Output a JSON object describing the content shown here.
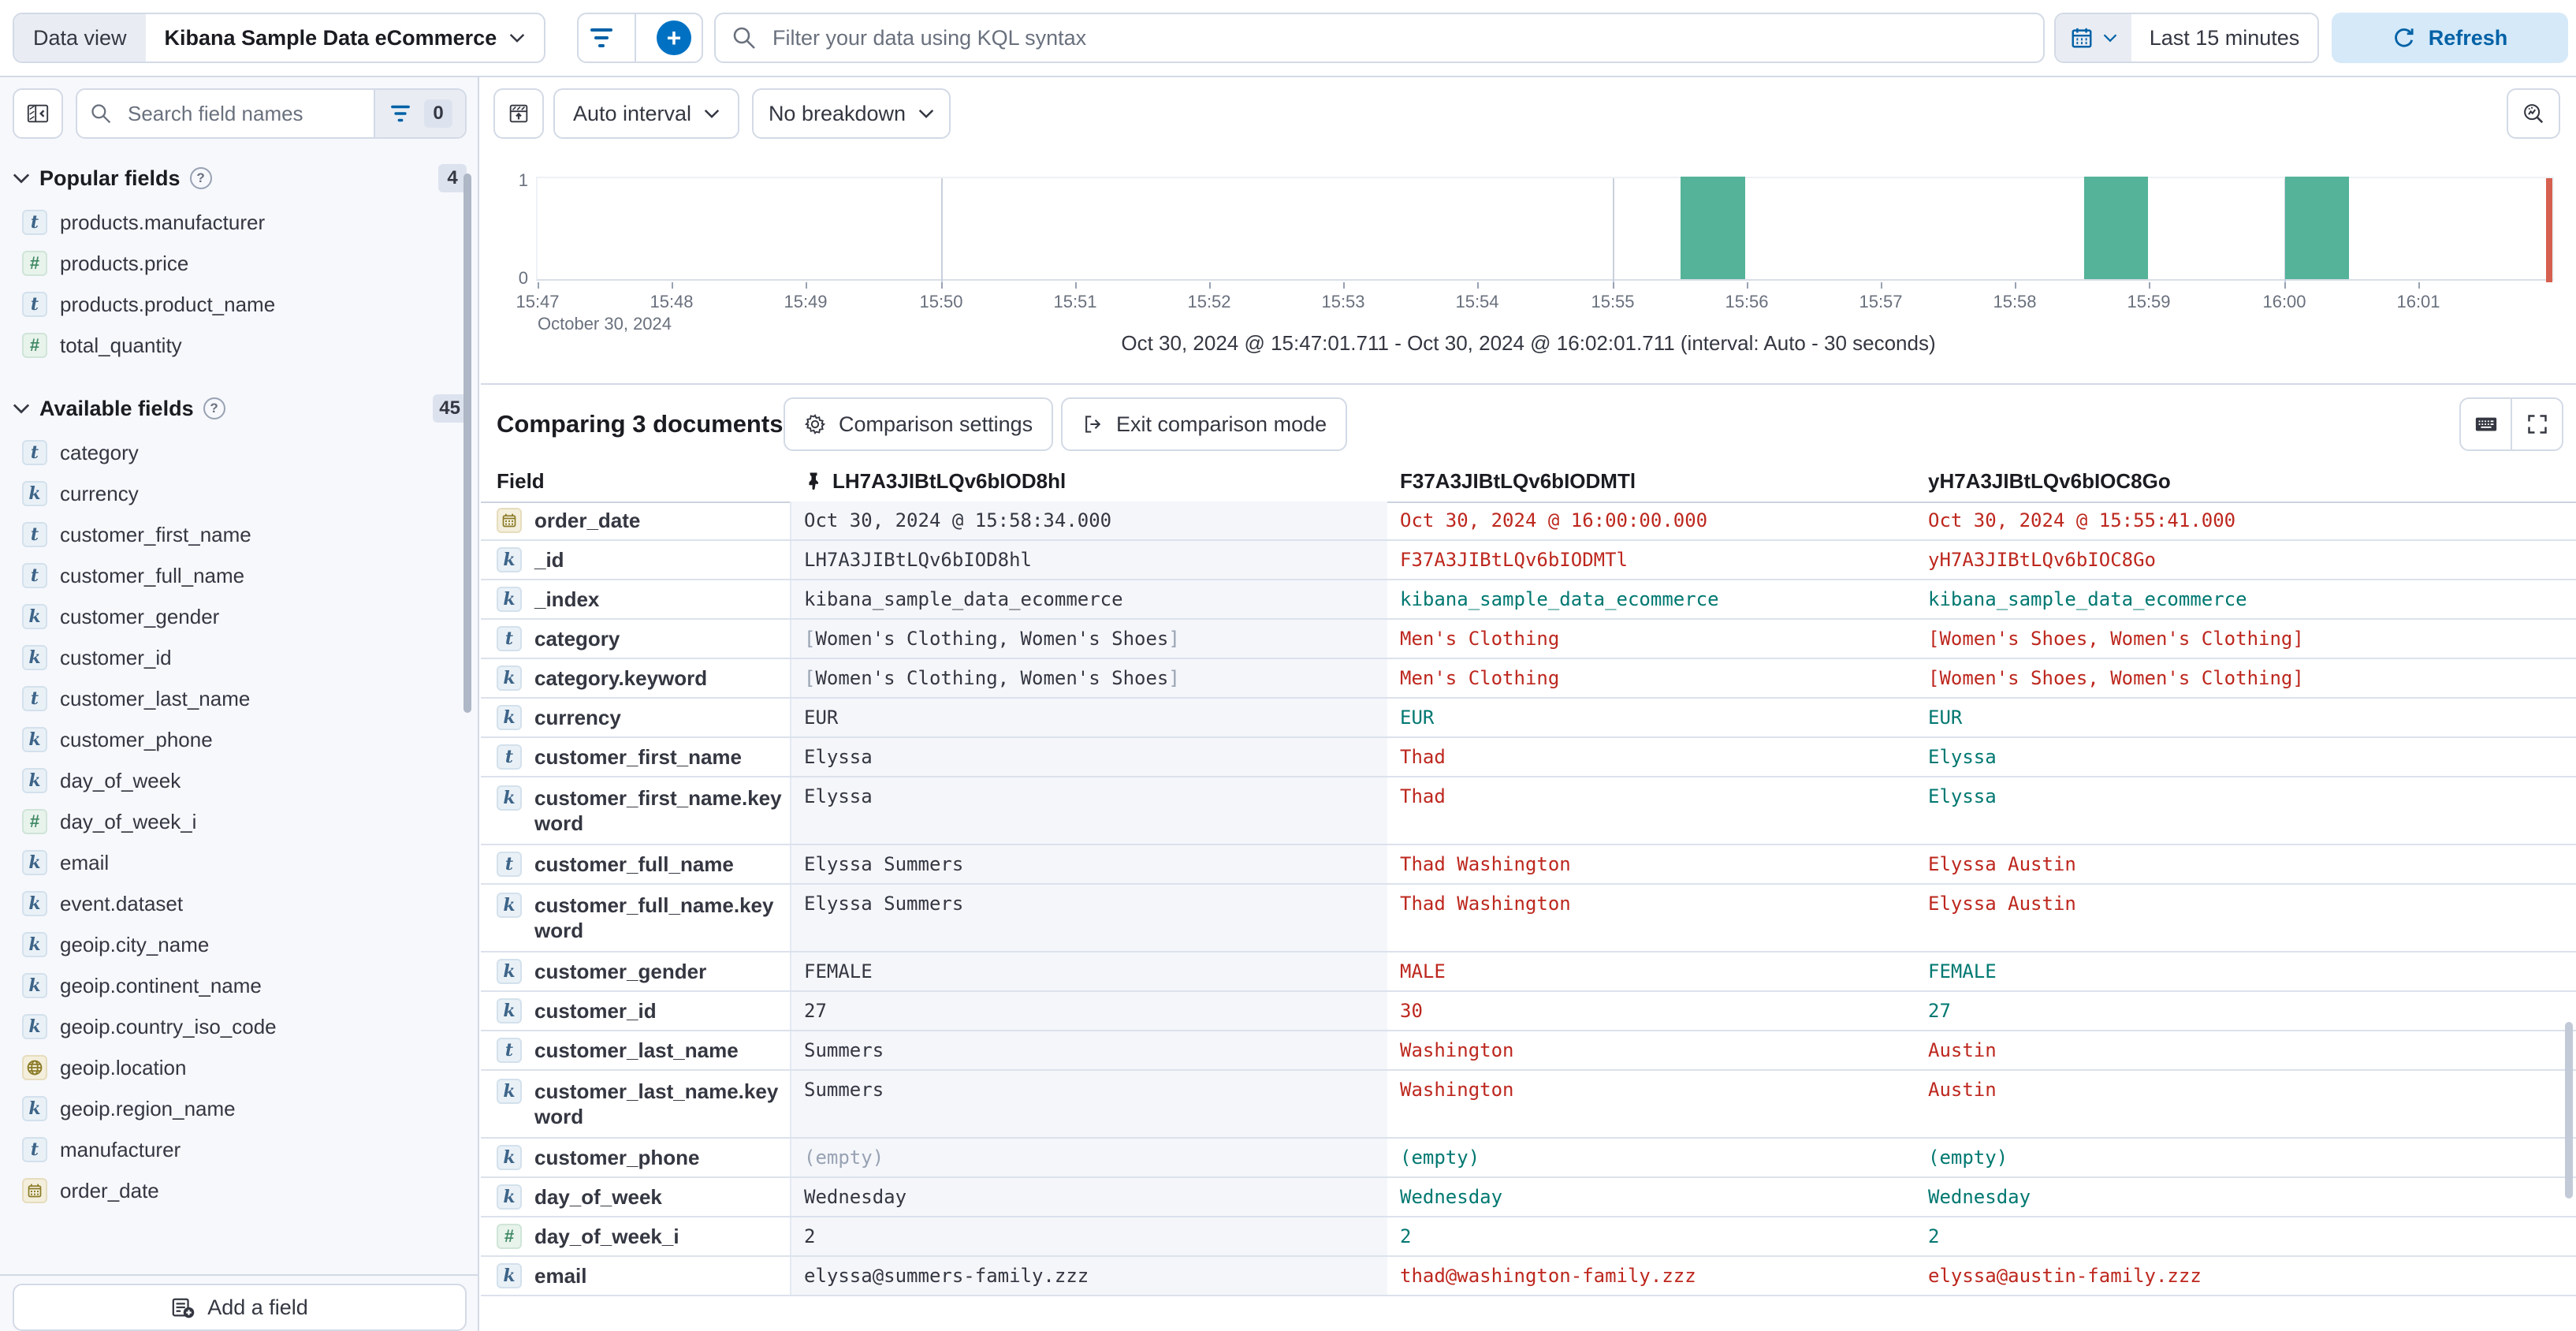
{
  "topbar": {
    "data_view_label": "Data view",
    "data_view_value": "Kibana Sample Data eCommerce",
    "search_placeholder": "Filter your data using KQL syntax",
    "time_range": "Last 15 minutes",
    "refresh_label": "Refresh"
  },
  "sidebar": {
    "search_placeholder": "Search field names",
    "filter_count": "0",
    "popular": {
      "title": "Popular fields",
      "count": "4",
      "items": [
        {
          "type": "t",
          "name": "products.manufacturer"
        },
        {
          "type": "#",
          "name": "products.price"
        },
        {
          "type": "t",
          "name": "products.product_name"
        },
        {
          "type": "#",
          "name": "total_quantity"
        }
      ]
    },
    "available": {
      "title": "Available fields",
      "count": "45",
      "items": [
        {
          "type": "t",
          "name": "category"
        },
        {
          "type": "k",
          "name": "currency"
        },
        {
          "type": "t",
          "name": "customer_first_name"
        },
        {
          "type": "t",
          "name": "customer_full_name"
        },
        {
          "type": "k",
          "name": "customer_gender"
        },
        {
          "type": "k",
          "name": "customer_id"
        },
        {
          "type": "t",
          "name": "customer_last_name"
        },
        {
          "type": "k",
          "name": "customer_phone"
        },
        {
          "type": "k",
          "name": "day_of_week"
        },
        {
          "type": "#",
          "name": "day_of_week_i"
        },
        {
          "type": "k",
          "name": "email"
        },
        {
          "type": "k",
          "name": "event.dataset"
        },
        {
          "type": "k",
          "name": "geoip.city_name"
        },
        {
          "type": "k",
          "name": "geoip.continent_name"
        },
        {
          "type": "k",
          "name": "geoip.country_iso_code"
        },
        {
          "type": "geo",
          "name": "geoip.location"
        },
        {
          "type": "k",
          "name": "geoip.region_name"
        },
        {
          "type": "t",
          "name": "manufacturer"
        },
        {
          "type": "date",
          "name": "order_date"
        }
      ]
    },
    "add_field_label": "Add a field"
  },
  "chart": {
    "interval_label": "Auto interval",
    "breakdown_label": "No breakdown"
  },
  "chart_data": {
    "type": "bar",
    "x_axis": {
      "tick_labels": [
        "15:47",
        "15:48",
        "15:49",
        "15:50",
        "15:51",
        "15:52",
        "15:53",
        "15:54",
        "15:55",
        "15:56",
        "15:57",
        "15:58",
        "15:59",
        "16:00",
        "16:01"
      ],
      "gridline_ticks": [
        "15:50",
        "15:55",
        "16:00"
      ],
      "date_label": "October 30, 2024",
      "start": "15:47:01.711",
      "end": "16:02:01.711"
    },
    "y_axis": {
      "ticks": [
        0,
        1
      ],
      "max": 1
    },
    "interval_seconds": 30,
    "buckets": [
      {
        "time": "15:55:30",
        "count": 1
      },
      {
        "time": "15:58:30",
        "count": 1
      },
      {
        "time": "16:00:00",
        "count": 1
      }
    ],
    "bar_color": "#54B399",
    "end_marker_color": "#D6604F",
    "time_range_caption": "Oct 30, 2024 @ 15:47:01.711 - Oct 30, 2024 @ 16:02:01.711 (interval: Auto - 30 seconds)"
  },
  "comparison": {
    "title": "Comparing 3 documents",
    "settings_label": "Comparison settings",
    "exit_label": "Exit comparison mode"
  },
  "table": {
    "field_header": "Field",
    "columns": [
      "LH7A3JIBtLQv6bIOD8hl",
      "F37A3JIBtLQv6bIODMTl",
      "yH7A3JIBtLQv6bIOC8Go"
    ],
    "rows": [
      {
        "type": "date",
        "field": "order_date",
        "cells": [
          {
            "v": "Oct 30, 2024 @ 15:58:34.000",
            "st": "base"
          },
          {
            "v": "Oct 30, 2024 @ 16:00:00.000",
            "st": "diff"
          },
          {
            "v": "Oct 30, 2024 @ 15:55:41.000",
            "st": "diff"
          }
        ]
      },
      {
        "type": "k",
        "field": "_id",
        "cells": [
          {
            "v": "LH7A3JIBtLQv6bIOD8hl",
            "st": "base"
          },
          {
            "v": "F37A3JIBtLQv6bIODMTl",
            "st": "diff"
          },
          {
            "v": "yH7A3JIBtLQv6bIOC8Go",
            "st": "diff"
          }
        ]
      },
      {
        "type": "k",
        "field": "_index",
        "cells": [
          {
            "v": "kibana_sample_data_ecommerce",
            "st": "base"
          },
          {
            "v": "kibana_sample_data_ecommerce",
            "st": "same"
          },
          {
            "v": "kibana_sample_data_ecommerce",
            "st": "same"
          }
        ]
      },
      {
        "type": "t",
        "field": "category",
        "cells": [
          {
            "v": "[Women's Clothing, Women's Shoes]",
            "st": "base"
          },
          {
            "v": "Men's Clothing",
            "st": "diff"
          },
          {
            "v": "[Women's Shoes, Women's Clothing]",
            "st": "diff"
          }
        ]
      },
      {
        "type": "k",
        "field": "category.keyword",
        "cells": [
          {
            "v": "[Women's Clothing, Women's Shoes]",
            "st": "base"
          },
          {
            "v": "Men's Clothing",
            "st": "diff"
          },
          {
            "v": "[Women's Shoes, Women's Clothing]",
            "st": "diff"
          }
        ]
      },
      {
        "type": "k",
        "field": "currency",
        "cells": [
          {
            "v": "EUR",
            "st": "base"
          },
          {
            "v": "EUR",
            "st": "same"
          },
          {
            "v": "EUR",
            "st": "same"
          }
        ]
      },
      {
        "type": "t",
        "field": "customer_first_name",
        "cells": [
          {
            "v": "Elyssa",
            "st": "base"
          },
          {
            "v": "Thad",
            "st": "diff"
          },
          {
            "v": "Elyssa",
            "st": "same"
          }
        ]
      },
      {
        "type": "k",
        "field": "customer_first_name.keyword",
        "wrap": true,
        "cells": [
          {
            "v": "Elyssa",
            "st": "base"
          },
          {
            "v": "Thad",
            "st": "diff"
          },
          {
            "v": "Elyssa",
            "st": "same"
          }
        ]
      },
      {
        "type": "t",
        "field": "customer_full_name",
        "cells": [
          {
            "v": "Elyssa Summers",
            "st": "base"
          },
          {
            "v": "Thad Washington",
            "st": "diff"
          },
          {
            "v": "Elyssa Austin",
            "st": "diff"
          }
        ]
      },
      {
        "type": "k",
        "field": "customer_full_name.keyword",
        "wrap": true,
        "cells": [
          {
            "v": "Elyssa Summers",
            "st": "base"
          },
          {
            "v": "Thad Washington",
            "st": "diff"
          },
          {
            "v": "Elyssa Austin",
            "st": "diff"
          }
        ]
      },
      {
        "type": "k",
        "field": "customer_gender",
        "cells": [
          {
            "v": "FEMALE",
            "st": "base"
          },
          {
            "v": "MALE",
            "st": "diff"
          },
          {
            "v": "FEMALE",
            "st": "same"
          }
        ]
      },
      {
        "type": "k",
        "field": "customer_id",
        "cells": [
          {
            "v": "27",
            "st": "base"
          },
          {
            "v": "30",
            "st": "diff"
          },
          {
            "v": "27",
            "st": "same"
          }
        ]
      },
      {
        "type": "t",
        "field": "customer_last_name",
        "cells": [
          {
            "v": "Summers",
            "st": "base"
          },
          {
            "v": "Washington",
            "st": "diff"
          },
          {
            "v": "Austin",
            "st": "diff"
          }
        ]
      },
      {
        "type": "k",
        "field": "customer_last_name.keyword",
        "wrap": true,
        "cells": [
          {
            "v": "Summers",
            "st": "base"
          },
          {
            "v": "Washington",
            "st": "diff"
          },
          {
            "v": "Austin",
            "st": "diff"
          }
        ]
      },
      {
        "type": "k",
        "field": "customer_phone",
        "cells": [
          {
            "v": "(empty)",
            "st": "empty"
          },
          {
            "v": "(empty)",
            "st": "same"
          },
          {
            "v": "(empty)",
            "st": "same"
          }
        ]
      },
      {
        "type": "k",
        "field": "day_of_week",
        "cells": [
          {
            "v": "Wednesday",
            "st": "base"
          },
          {
            "v": "Wednesday",
            "st": "same"
          },
          {
            "v": "Wednesday",
            "st": "same"
          }
        ]
      },
      {
        "type": "#",
        "field": "day_of_week_i",
        "cells": [
          {
            "v": "2",
            "st": "base"
          },
          {
            "v": "2",
            "st": "same"
          },
          {
            "v": "2",
            "st": "same"
          }
        ]
      },
      {
        "type": "k",
        "field": "email",
        "cells": [
          {
            "v": "elyssa@summers-family.zzz",
            "st": "base"
          },
          {
            "v": "thad@washington-family.zzz",
            "st": "diff"
          },
          {
            "v": "elyssa@austin-family.zzz",
            "st": "diff"
          }
        ]
      }
    ]
  }
}
